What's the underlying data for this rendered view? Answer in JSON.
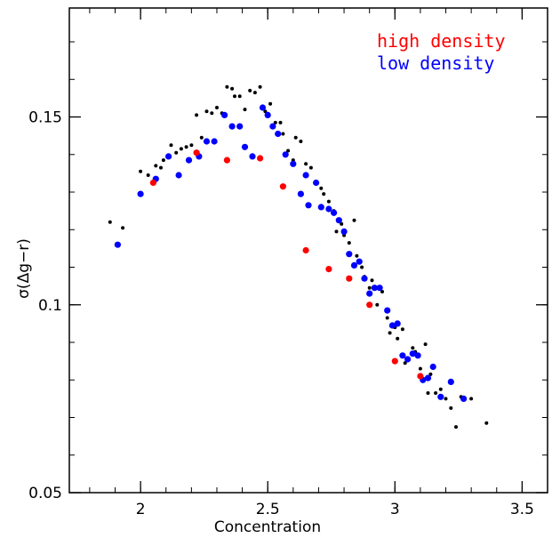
{
  "chart_data": {
    "type": "scatter",
    "title": "",
    "xlabel": "Concentration",
    "ylabel": "σ(Δg−r)",
    "xlim": [
      1.72,
      3.6
    ],
    "ylim": [
      0.05,
      0.179
    ],
    "xticks": [
      {
        "value": 2,
        "label": "2"
      },
      {
        "value": 2.5,
        "label": "2.5"
      },
      {
        "value": 3,
        "label": "3"
      },
      {
        "value": 3.5,
        "label": "3.5"
      }
    ],
    "yticks": [
      {
        "value": 0.05,
        "label": "0.05"
      },
      {
        "value": 0.1,
        "label": "0.1"
      },
      {
        "value": 0.15,
        "label": "0.15"
      }
    ],
    "x_minor_step": 0.1,
    "y_minor_step": 0.01,
    "grid": false,
    "legend_position": "top-right",
    "series": [
      {
        "name": "",
        "color": "#000000",
        "marker_size": "small",
        "points": [
          [
            1.88,
            0.122
          ],
          [
            1.93,
            0.1205
          ],
          [
            2.0,
            0.1355
          ],
          [
            2.03,
            0.1345
          ],
          [
            2.06,
            0.137
          ],
          [
            2.08,
            0.1365
          ],
          [
            2.09,
            0.1385
          ],
          [
            2.12,
            0.1425
          ],
          [
            2.14,
            0.1405
          ],
          [
            2.16,
            0.1415
          ],
          [
            2.18,
            0.142
          ],
          [
            2.2,
            0.1425
          ],
          [
            2.22,
            0.1505
          ],
          [
            2.24,
            0.1445
          ],
          [
            2.26,
            0.1515
          ],
          [
            2.28,
            0.151
          ],
          [
            2.3,
            0.1525
          ],
          [
            2.32,
            0.151
          ],
          [
            2.34,
            0.158
          ],
          [
            2.36,
            0.1575
          ],
          [
            2.37,
            0.1555
          ],
          [
            2.39,
            0.1555
          ],
          [
            2.41,
            0.152
          ],
          [
            2.43,
            0.157
          ],
          [
            2.45,
            0.1565
          ],
          [
            2.47,
            0.158
          ],
          [
            2.49,
            0.1515
          ],
          [
            2.51,
            0.1535
          ],
          [
            2.53,
            0.1485
          ],
          [
            2.55,
            0.1485
          ],
          [
            2.56,
            0.1455
          ],
          [
            2.58,
            0.141
          ],
          [
            2.6,
            0.1385
          ],
          [
            2.61,
            0.1445
          ],
          [
            2.63,
            0.1435
          ],
          [
            2.65,
            0.1375
          ],
          [
            2.67,
            0.1365
          ],
          [
            2.69,
            0.1325
          ],
          [
            2.71,
            0.131
          ],
          [
            2.72,
            0.1295
          ],
          [
            2.74,
            0.1275
          ],
          [
            2.76,
            0.125
          ],
          [
            2.77,
            0.1195
          ],
          [
            2.79,
            0.1215
          ],
          [
            2.8,
            0.1185
          ],
          [
            2.82,
            0.1165
          ],
          [
            2.84,
            0.1225
          ],
          [
            2.85,
            0.113
          ],
          [
            2.87,
            0.11
          ],
          [
            2.88,
            0.1075
          ],
          [
            2.9,
            0.1045
          ],
          [
            2.91,
            0.1065
          ],
          [
            2.93,
            0.1
          ],
          [
            2.95,
            0.1035
          ],
          [
            2.97,
            0.0965
          ],
          [
            2.98,
            0.0925
          ],
          [
            3.0,
            0.094
          ],
          [
            3.01,
            0.091
          ],
          [
            3.03,
            0.0935
          ],
          [
            3.04,
            0.0845
          ],
          [
            3.05,
            0.0855
          ],
          [
            3.07,
            0.0885
          ],
          [
            3.08,
            0.0875
          ],
          [
            3.1,
            0.083
          ],
          [
            3.12,
            0.0895
          ],
          [
            3.14,
            0.0815
          ],
          [
            3.13,
            0.0765
          ],
          [
            3.16,
            0.0765
          ],
          [
            3.18,
            0.0775
          ],
          [
            3.2,
            0.075
          ],
          [
            3.22,
            0.0725
          ],
          [
            3.24,
            0.0675
          ],
          [
            3.26,
            0.0755
          ],
          [
            3.3,
            0.075
          ],
          [
            3.36,
            0.0685
          ]
        ]
      },
      {
        "name": "low density",
        "color": "#0000ff",
        "marker_size": "large",
        "points": [
          [
            1.91,
            0.116
          ],
          [
            2.0,
            0.1295
          ],
          [
            2.06,
            0.1335
          ],
          [
            2.11,
            0.1395
          ],
          [
            2.15,
            0.1345
          ],
          [
            2.19,
            0.1385
          ],
          [
            2.23,
            0.1395
          ],
          [
            2.26,
            0.1435
          ],
          [
            2.29,
            0.1435
          ],
          [
            2.33,
            0.1505
          ],
          [
            2.36,
            0.1475
          ],
          [
            2.39,
            0.1475
          ],
          [
            2.41,
            0.142
          ],
          [
            2.44,
            0.1395
          ],
          [
            2.48,
            0.1525
          ],
          [
            2.5,
            0.1505
          ],
          [
            2.52,
            0.1475
          ],
          [
            2.54,
            0.1455
          ],
          [
            2.57,
            0.14
          ],
          [
            2.6,
            0.1375
          ],
          [
            2.63,
            0.1295
          ],
          [
            2.65,
            0.1345
          ],
          [
            2.66,
            0.1265
          ],
          [
            2.69,
            0.1325
          ],
          [
            2.71,
            0.126
          ],
          [
            2.74,
            0.1255
          ],
          [
            2.76,
            0.1245
          ],
          [
            2.78,
            0.1225
          ],
          [
            2.8,
            0.1195
          ],
          [
            2.82,
            0.1135
          ],
          [
            2.84,
            0.1105
          ],
          [
            2.86,
            0.1115
          ],
          [
            2.88,
            0.107
          ],
          [
            2.9,
            0.103
          ],
          [
            2.92,
            0.1045
          ],
          [
            2.94,
            0.1045
          ],
          [
            2.97,
            0.0985
          ],
          [
            2.99,
            0.0945
          ],
          [
            3.01,
            0.095
          ],
          [
            3.03,
            0.0865
          ],
          [
            3.05,
            0.0855
          ],
          [
            3.07,
            0.087
          ],
          [
            3.09,
            0.0865
          ],
          [
            3.11,
            0.08
          ],
          [
            3.13,
            0.0805
          ],
          [
            3.15,
            0.0835
          ],
          [
            3.18,
            0.0755
          ],
          [
            3.22,
            0.0795
          ],
          [
            3.27,
            0.075
          ]
        ]
      },
      {
        "name": "high density",
        "color": "#ff0000",
        "marker_size": "large",
        "points": [
          [
            2.05,
            0.1325
          ],
          [
            2.22,
            0.1405
          ],
          [
            2.34,
            0.1385
          ],
          [
            2.47,
            0.139
          ],
          [
            2.56,
            0.1315
          ],
          [
            2.65,
            0.1145
          ],
          [
            2.74,
            0.1095
          ],
          [
            2.82,
            0.107
          ],
          [
            2.9,
            0.1
          ],
          [
            3.0,
            0.085
          ],
          [
            3.1,
            0.081
          ]
        ]
      }
    ],
    "legend": [
      {
        "label": "high density",
        "color": "#ff0000"
      },
      {
        "label": "low density",
        "color": "#0000ff"
      }
    ]
  }
}
